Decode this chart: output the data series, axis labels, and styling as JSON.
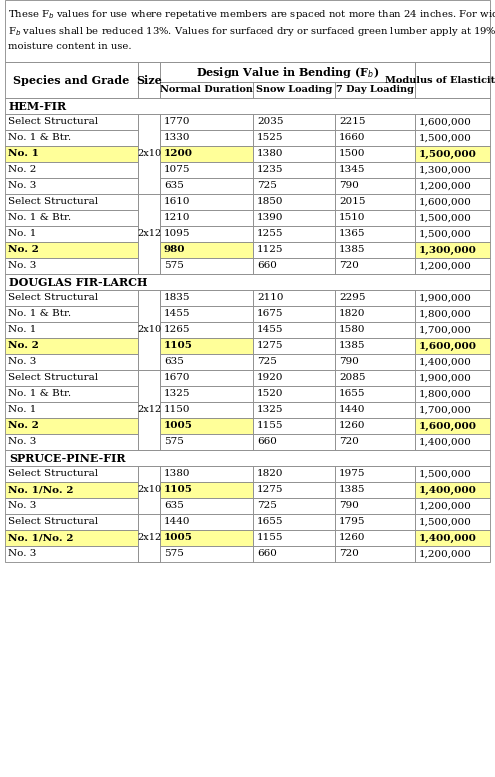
{
  "sections": [
    {
      "name": "HEM-FIR",
      "rows": [
        {
          "grade": "Select Structural",
          "size_label": "",
          "size_group": "2x10",
          "nd": "1770",
          "sl": "2035",
          "dl": "2215",
          "moe": "1,600,000",
          "highlight": false
        },
        {
          "grade": "No. 1 & Btr.",
          "size_label": "",
          "size_group": "2x10",
          "nd": "1330",
          "sl": "1525",
          "dl": "1660",
          "moe": "1,500,000",
          "highlight": false
        },
        {
          "grade": "No. 1",
          "size_label": "2x10",
          "size_group": "2x10",
          "nd": "1200",
          "sl": "1380",
          "dl": "1500",
          "moe": "1,500,000",
          "highlight": true
        },
        {
          "grade": "No. 2",
          "size_label": "",
          "size_group": "2x10",
          "nd": "1075",
          "sl": "1235",
          "dl": "1345",
          "moe": "1,300,000",
          "highlight": false
        },
        {
          "grade": "No. 3",
          "size_label": "",
          "size_group": "2x10",
          "nd": "635",
          "sl": "725",
          "dl": "790",
          "moe": "1,200,000",
          "highlight": false
        },
        {
          "grade": "Select Structural",
          "size_label": "",
          "size_group": "2x12",
          "nd": "1610",
          "sl": "1850",
          "dl": "2015",
          "moe": "1,600,000",
          "highlight": false
        },
        {
          "grade": "No. 1 & Btr.",
          "size_label": "",
          "size_group": "2x12",
          "nd": "1210",
          "sl": "1390",
          "dl": "1510",
          "moe": "1,500,000",
          "highlight": false
        },
        {
          "grade": "No. 1",
          "size_label": "2x12",
          "size_group": "2x12",
          "nd": "1095",
          "sl": "1255",
          "dl": "1365",
          "moe": "1,500,000",
          "highlight": false
        },
        {
          "grade": "No. 2",
          "size_label": "",
          "size_group": "2x12",
          "nd": "980",
          "sl": "1125",
          "dl": "1385",
          "moe": "1,300,000",
          "highlight": true
        },
        {
          "grade": "No. 3",
          "size_label": "",
          "size_group": "2x12",
          "nd": "575",
          "sl": "660",
          "dl": "720",
          "moe": "1,200,000",
          "highlight": false
        }
      ],
      "size_groups": [
        {
          "label": "2x10",
          "start": 0,
          "end": 5
        },
        {
          "label": "2x12",
          "start": 5,
          "end": 10
        }
      ]
    },
    {
      "name": "DOUGLAS FIR-LARCH",
      "rows": [
        {
          "grade": "Select Structural",
          "size_label": "",
          "size_group": "2x10",
          "nd": "1835",
          "sl": "2110",
          "dl": "2295",
          "moe": "1,900,000",
          "highlight": false
        },
        {
          "grade": "No. 1 & Btr.",
          "size_label": "",
          "size_group": "2x10",
          "nd": "1455",
          "sl": "1675",
          "dl": "1820",
          "moe": "1,800,000",
          "highlight": false
        },
        {
          "grade": "No. 1",
          "size_label": "2x10",
          "size_group": "2x10",
          "nd": "1265",
          "sl": "1455",
          "dl": "1580",
          "moe": "1,700,000",
          "highlight": false
        },
        {
          "grade": "No. 2",
          "size_label": "",
          "size_group": "2x10",
          "nd": "1105",
          "sl": "1275",
          "dl": "1385",
          "moe": "1,600,000",
          "highlight": true
        },
        {
          "grade": "No. 3",
          "size_label": "",
          "size_group": "2x10",
          "nd": "635",
          "sl": "725",
          "dl": "790",
          "moe": "1,400,000",
          "highlight": false
        },
        {
          "grade": "Select Structural",
          "size_label": "",
          "size_group": "2x12",
          "nd": "1670",
          "sl": "1920",
          "dl": "2085",
          "moe": "1,900,000",
          "highlight": false
        },
        {
          "grade": "No. 1 & Btr.",
          "size_label": "",
          "size_group": "2x12",
          "nd": "1325",
          "sl": "1520",
          "dl": "1655",
          "moe": "1,800,000",
          "highlight": false
        },
        {
          "grade": "No. 1",
          "size_label": "2x12",
          "size_group": "2x12",
          "nd": "1150",
          "sl": "1325",
          "dl": "1440",
          "moe": "1,700,000",
          "highlight": false
        },
        {
          "grade": "No. 2",
          "size_label": "",
          "size_group": "2x12",
          "nd": "1005",
          "sl": "1155",
          "dl": "1260",
          "moe": "1,600,000",
          "highlight": true
        },
        {
          "grade": "No. 3",
          "size_label": "",
          "size_group": "2x12",
          "nd": "575",
          "sl": "660",
          "dl": "720",
          "moe": "1,400,000",
          "highlight": false
        }
      ],
      "size_groups": [
        {
          "label": "2x10",
          "start": 0,
          "end": 5
        },
        {
          "label": "2x12",
          "start": 5,
          "end": 10
        }
      ]
    },
    {
      "name": "SPRUCE-PINE-FIR",
      "rows": [
        {
          "grade": "Select Structural",
          "size_label": "",
          "size_group": "2x10",
          "nd": "1380",
          "sl": "1820",
          "dl": "1975",
          "moe": "1,500,000",
          "highlight": false
        },
        {
          "grade": "No. 1/No. 2",
          "size_label": "2x10",
          "size_group": "2x10",
          "nd": "1105",
          "sl": "1275",
          "dl": "1385",
          "moe": "1,400,000",
          "highlight": true
        },
        {
          "grade": "No. 3",
          "size_label": "",
          "size_group": "2x10",
          "nd": "635",
          "sl": "725",
          "dl": "790",
          "moe": "1,200,000",
          "highlight": false
        },
        {
          "grade": "Select Structural",
          "size_label": "",
          "size_group": "2x12",
          "nd": "1440",
          "sl": "1655",
          "dl": "1795",
          "moe": "1,500,000",
          "highlight": false
        },
        {
          "grade": "No. 1/No. 2",
          "size_label": "2x12",
          "size_group": "2x12",
          "nd": "1005",
          "sl": "1155",
          "dl": "1260",
          "moe": "1,400,000",
          "highlight": true
        },
        {
          "grade": "No. 3",
          "size_label": "",
          "size_group": "2x12",
          "nd": "575",
          "sl": "660",
          "dl": "720",
          "moe": "1,200,000",
          "highlight": false
        }
      ],
      "size_groups": [
        {
          "label": "2x10",
          "start": 0,
          "end": 3
        },
        {
          "label": "2x12",
          "start": 3,
          "end": 6
        }
      ]
    }
  ],
  "highlight_color": "#FFFF99",
  "note_font_size": 7.2,
  "cell_font_size": 7.5,
  "header_font_size": 8.0
}
